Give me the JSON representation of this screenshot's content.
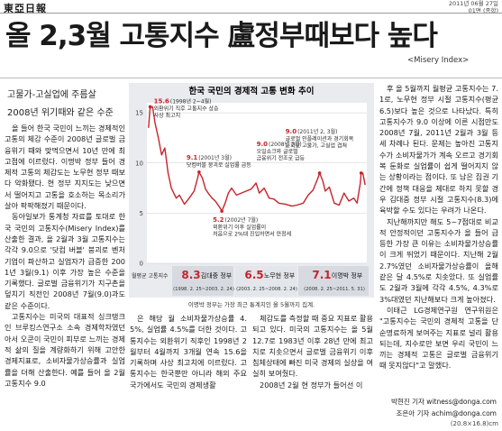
{
  "header": {
    "logo": "東亞日報",
    "date": "2011년 06월 27일",
    "section": "01면 (종합)"
  },
  "headline": "올 2,3월 고통지수 盧정부때보다 높다",
  "subtitle": "<Misery Index>",
  "subheads": [
    "고물가-고실업에 주름살",
    "2008년 위기때와 같은 수준"
  ],
  "columns": [
    [
      "올 들어 한국 국민이 느끼는 경제적인 고통의 체감 수준이 2008년 글로벌 금융위기 때와 맞먹으면서 10년 만에 최고점에 이르렀다. 이명박 정부 들어 경제적 고통의 체감도는 노무현 정부 때보다 악화됐다. 현 정부 지지도는 낮으면서 떨어지고 고통을 호소하는 목소리가 살아 팍팍해졌기 때문이다.",
      "동아일보가 통계청 자료를 토대로 한국 국민의 고통지수(Misery Index)를 산출한 결과, 올 2월과 3월 고통지수는 각각 9.0으로 '닷컴 버블' 붕괴로 벤처기업이 파산하고 실업자가 급증한 2001년 3월(9.1) 이후 가장 높은 수준을 기록했다. 글로벌 금융위기가 지구촌을 덮치기 직전인 2008년 7월(9.0)과도 같은 수준이다.",
      "고통지수는 미국의 대표적 싱크탱크인 브루킹스연구소 소속 경제학자였던 아서 오쿤이 국민이 피부로 느끼는 경제적 삶의 질을 계량화하기 위해 고안한 경제지표로, 소비자물가상승률과 실업률을 더해 산출한다. 예를 들어 올 2월 고통지수 9.0"
    ],
    [
      "은 해당 월 소비자물가상승률 4.5%, 실업률 4.5%를 더한 것이다. 고통지수는 외환위기 직후인 1998년 2월부터 4월까지 3개월 연속 15.6을 기록하며 사상 최고치에 이르렀다. 고통지수는 한국뿐만 아니라 해외 주요 국가에서도 국민의 경제생활"
    ],
    [
      "체감도를 측정할 때 중요 지표로 활용되고 있다. 미국의 고통지수는 올 5월 12.7로 1983년 이후 28년 만에 최고치로 치솟으면서 글로벌 금융위기 이후 침체상태에 빠진 미국 경제의 실상을 여실히 보여줬다.",
      "2008년 2월 현 정부가 들어선 이"
    ],
    [
      "후 올 5월까지 월평균 고통지수는 7.1로, 노무현 정부 시절 고통지수(평균 6.5)보다 높은 것으로 나타났다. 특히 고통지수가 9.0 이상에 이른 시점만도 2008년 7월, 2011년 2월과 3월 등 세 차례나 된다. 문제는 높아진 고통지수가 소비자물가가 계속 오르고 경기회복 둔화로 실업률이 쉽게 떨어지지 않는 상황이라는 점이다. 또 남은 집권 기간에 정책 대응을 제대로 하지 못할 경우 김대중 정부 시절 고통지수(8.3)에 육박할 수도 있다는 우려가 나온다.",
      "지난해까지만 해도 5~7점대로 비교적 안정적이던 고통지수가 올 들어 급등한 가장 큰 이유는 소비자물가상승률이 크게 뛰었기 때문이다. 지난해 2월 2.7%였던 소비자물가상승률이 올해 같은 달 4.5%로 치솟았다. 또 실업률도 2월과 3월에 각각 4.5%, 4.3%로 3%대였던 지난해보다 크게 높아졌다.",
      "이태근 LG경제연구원 연구위원은 \"고통지수는 국민의 경제적 고통을 단순명료하게 보여주는 지표로 널리 활용되는데, 지수로만 보면 우리 국민이 느끼는 경제적 고통은 글로벌 금융위기 때 못지않다\"고 말했다."
    ]
  ],
  "bylines": [
    "박현진 기자 witness@donga.com",
    "조은아 기자 achim@donga.com"
  ],
  "footer": "(20.8×16.8)cm",
  "chart_data": {
    "type": "line",
    "title": "한국 국민의 경제적 고통 변화 추이",
    "color": "#c8232c",
    "x": [
      1998.1,
      1998.2,
      1998.35,
      1998.5,
      1998.7,
      1998.9,
      1999.1,
      1999.3,
      1999.5,
      1999.8,
      2000.0,
      2000.3,
      2000.6,
      2000.9,
      2001.1,
      2001.2,
      2001.4,
      2001.6,
      2001.8,
      2002.0,
      2002.2,
      2002.5,
      2002.6,
      2002.8,
      2003.0,
      2003.2,
      2003.5,
      2003.8,
      2004.1,
      2004.4,
      2004.7,
      2004.9,
      2005.2,
      2005.5,
      2005.8,
      2006.1,
      2006.5,
      2006.9,
      2007.2,
      2007.6,
      2007.9,
      2008.2,
      2008.5,
      2008.6,
      2008.8,
      2008.95,
      2009.2,
      2009.5,
      2009.8,
      2010.1,
      2010.4,
      2010.7,
      2010.9,
      2011.1,
      2011.15,
      2011.25,
      2011.4
    ],
    "values": [
      13.5,
      15.6,
      15.6,
      14.0,
      12.5,
      10.8,
      11.5,
      9.0,
      7.5,
      6.5,
      6.8,
      5.9,
      6.5,
      7.2,
      8.4,
      9.1,
      8.5,
      7.4,
      6.9,
      6.5,
      6.2,
      5.5,
      5.2,
      6.0,
      7.0,
      7.5,
      6.8,
      7.0,
      7.2,
      7.4,
      8.0,
      7.0,
      7.5,
      6.5,
      6.4,
      6.0,
      5.9,
      5.7,
      5.8,
      6.0,
      6.8,
      7.3,
      8.5,
      9.0,
      8.2,
      7.2,
      7.6,
      6.0,
      5.8,
      7.0,
      6.2,
      6.5,
      6.0,
      8.0,
      9.0,
      9.0,
      7.8
    ],
    "xlim": [
      1998,
      2011.5
    ],
    "ylim": [
      0,
      16
    ],
    "yticks": [
      0,
      5,
      10,
      15
    ],
    "annotations": [
      {
        "x": 1998.2,
        "value": 15.6,
        "value_label": "15.6",
        "label": "(1998년 2~4월)",
        "lines": [
          "외환위기 직후 고통지수 상승",
          "사상 최고치"
        ]
      },
      {
        "x": 2001.2,
        "value": 9.1,
        "value_label": "9.1",
        "label": "(2001년 3월)",
        "lines": [
          "닷컴버블 붕괴로 실업률 급등"
        ]
      },
      {
        "x": 2002.6,
        "value": 5.2,
        "value_label": "5.2",
        "label": "(2002년 7월)",
        "lines": [
          "외환위기 이후 실업률이",
          "처음으로 2%대 진입하면서 안정세"
        ]
      },
      {
        "x": 2008.6,
        "value": 9.0,
        "value_label": "9.0",
        "label": "(2008년 7월)",
        "lines": [
          "오일쇼크와 글로벌",
          "금융위기 전조로 급등"
        ]
      },
      {
        "x": 2011.15,
        "value": 9.0,
        "value_label": "9.0",
        "label": "(2011년 2, 3월)",
        "lines": [
          "글로벌 인플레이션과 경기회복",
          "둔화로 고물가, 고실업 겹쳐"
        ]
      }
    ],
    "average_label": "월평균 고통지수",
    "periods": [
      {
        "name": "김대중 정부",
        "range": "(1998. 2. 25~2003. 2. 24)",
        "value": 8.3
      },
      {
        "name": "노무현 정부",
        "range": "(2003. 2. 25~2008. 2. 24)",
        "value": 6.5
      },
      {
        "name": "이명박 정부",
        "range": "(2008. 2. 25~2011. 5. 31)",
        "value": 7.1
      }
    ],
    "note": "이명박 정부는 가장 최근 통계치인 올 5월까지 집계."
  }
}
